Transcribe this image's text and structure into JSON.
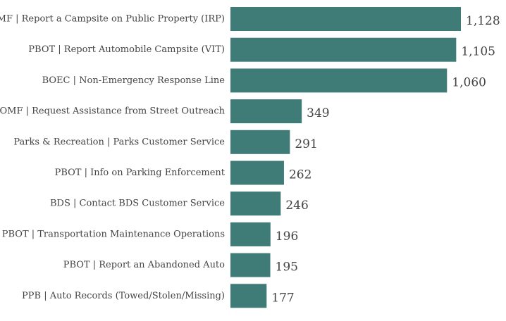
{
  "chart_data": {
    "type": "bar",
    "orientation": "horizontal",
    "title": "",
    "xlabel": "",
    "ylabel": "",
    "grid": false,
    "bar_color": "#3f7c78",
    "categories": [
      "OMF | Report a Campsite on Public Property (IRP)",
      "PBOT | Report Automobile Campsite (VIT)",
      "BOEC | Non-Emergency Response Line",
      "OMF | Request Assistance from Street Outreach",
      "Parks & Recreation | Parks Customer Service",
      "PBOT | Info on Parking Enforcement",
      "BDS | Contact BDS Customer Service",
      "PBOT | Transportation Maintenance Operations",
      "PBOT | Report an Abandoned Auto",
      "PPB | Auto Records (Towed/Stolen/Missing)"
    ],
    "values": [
      1128,
      1105,
      1060,
      349,
      291,
      262,
      246,
      196,
      195,
      177
    ],
    "value_labels": [
      "1,128",
      "1,105",
      "1,060",
      "349",
      "291",
      "262",
      "246",
      "196",
      "195",
      "177"
    ],
    "xlim": [
      0,
      1128
    ]
  }
}
